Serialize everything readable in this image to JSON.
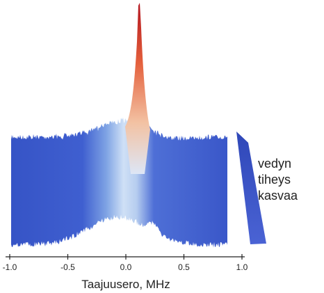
{
  "chart_data": {
    "type": "area",
    "xlabel": "Taajuusero, MHz",
    "x_ticks": [
      {
        "value": -1.0,
        "label": "-1.0"
      },
      {
        "value": -0.5,
        "label": "-0.5"
      },
      {
        "value": 0.0,
        "label": "0.0"
      },
      {
        "value": 0.5,
        "label": "0.5"
      },
      {
        "value": 1.0,
        "label": "1.0"
      }
    ],
    "xlim": [
      -1.0,
      1.0
    ],
    "ylabel": "",
    "grid": false,
    "annotation": {
      "lines": [
        "vedyn",
        "tiheys",
        "kasvaa"
      ],
      "arrow_color": "#3f58cc"
    },
    "colors": {
      "low": "#3a55c8",
      "mid": "#c7dcf5",
      "high": "#b81c25"
    }
  }
}
